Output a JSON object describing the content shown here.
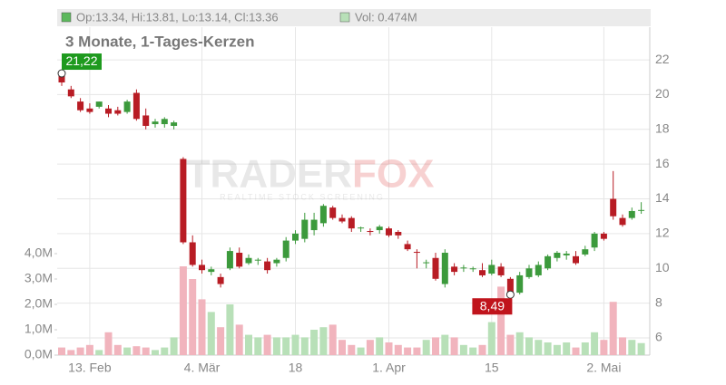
{
  "chart_data": {
    "type": "candlestick",
    "header": {
      "ohlc": "Op:13.34, Hi:13.81, Lo:13.14, Cl:13.36",
      "volume": "Vol: 0.474M"
    },
    "subtitle": "3 Monate, 1-Tages-Kerzen",
    "watermark": {
      "brand_left": "TRADER",
      "brand_right": "FOX",
      "tagline": "REALTIME STOCK SCREENING"
    },
    "categories": [
      null,
      null,
      null,
      "13. Feb",
      null,
      null,
      null,
      null,
      null,
      null,
      null,
      null,
      null,
      null,
      null,
      "4. Mär",
      null,
      null,
      null,
      null,
      null,
      null,
      null,
      null,
      null,
      "18",
      null,
      null,
      null,
      null,
      null,
      null,
      null,
      null,
      null,
      "1. Apr",
      null,
      null,
      null,
      null,
      null,
      null,
      null,
      null,
      null,
      null,
      "15",
      null,
      null,
      null,
      null,
      null,
      null,
      null,
      null,
      null,
      null,
      null,
      "2. Mai",
      null,
      null,
      null,
      null
    ],
    "open": [
      21.1,
      20.3,
      19.6,
      19.2,
      19.3,
      19.2,
      19.1,
      19.0,
      20.1,
      18.8,
      18.3,
      18.3,
      18.2,
      16.3,
      11.5,
      10.2,
      9.8,
      9.5,
      10.0,
      10.9,
      10.3,
      10.45,
      10.4,
      10.3,
      10.6,
      11.6,
      11.7,
      12.2,
      12.6,
      13.5,
      12.9,
      12.9,
      12.3,
      12.15,
      12.2,
      12.3,
      12.1,
      11.4,
      10.95,
      10.3,
      10.6,
      9.1,
      10.1,
      10.0,
      9.95,
      9.9,
      9.7,
      10.1,
      9.4,
      8.6,
      9.5,
      9.6,
      10.0,
      10.6,
      10.75,
      10.7,
      10.8,
      11.2,
      12.0,
      14.0,
      12.9,
      12.9,
      13.34
    ],
    "high": [
      21.22,
      20.5,
      19.8,
      19.5,
      19.6,
      19.4,
      19.3,
      19.7,
      20.3,
      19.2,
      18.6,
      18.7,
      18.5,
      16.4,
      11.9,
      10.5,
      10.1,
      9.7,
      11.2,
      11.2,
      10.8,
      10.6,
      10.6,
      10.6,
      11.8,
      12.2,
      13.2,
      13.2,
      13.7,
      13.6,
      13.1,
      13.0,
      12.4,
      12.3,
      12.5,
      12.4,
      12.2,
      11.6,
      11.1,
      10.5,
      10.9,
      11.1,
      10.3,
      10.2,
      10.1,
      10.3,
      10.5,
      10.3,
      9.5,
      9.8,
      10.2,
      10.4,
      10.8,
      11.0,
      11.0,
      11.0,
      11.3,
      12.1,
      12.1,
      15.6,
      13.1,
      13.5,
      13.81
    ],
    "low": [
      20.5,
      19.8,
      19.0,
      18.9,
      19.2,
      18.7,
      18.8,
      18.9,
      18.5,
      18.0,
      18.1,
      18.1,
      18.0,
      11.4,
      10.1,
      9.7,
      9.6,
      8.9,
      9.9,
      10.0,
      10.2,
      10.2,
      9.7,
      10.1,
      10.4,
      11.4,
      11.5,
      11.9,
      12.4,
      12.8,
      12.6,
      12.1,
      12.1,
      11.9,
      12.0,
      11.8,
      11.7,
      11.0,
      10.0,
      10.0,
      9.3,
      8.9,
      9.6,
      9.8,
      9.8,
      9.5,
      9.6,
      9.5,
      8.49,
      8.5,
      9.4,
      9.5,
      9.9,
      10.4,
      10.5,
      10.2,
      10.7,
      11.0,
      11.6,
      12.8,
      12.4,
      12.8,
      13.14
    ],
    "close": [
      20.7,
      19.9,
      19.1,
      19.0,
      19.6,
      18.9,
      18.9,
      19.6,
      18.6,
      18.2,
      18.45,
      18.6,
      18.4,
      11.5,
      10.2,
      9.9,
      9.95,
      9.1,
      11.0,
      10.1,
      10.6,
      10.5,
      9.9,
      10.5,
      11.6,
      12.0,
      12.8,
      12.8,
      13.6,
      12.9,
      12.7,
      12.3,
      12.35,
      12.1,
      12.4,
      11.9,
      11.9,
      11.1,
      10.9,
      10.35,
      9.4,
      10.9,
      9.8,
      10.05,
      10.0,
      9.6,
      10.2,
      9.6,
      8.6,
      9.6,
      10.0,
      10.2,
      10.7,
      10.9,
      10.85,
      10.3,
      11.1,
      12.0,
      11.7,
      13.0,
      12.5,
      13.3,
      13.36
    ],
    "volume": [
      0.3,
      0.2,
      0.3,
      0.4,
      0.2,
      0.9,
      0.4,
      0.3,
      0.35,
      0.3,
      0.2,
      0.3,
      0.7,
      3.5,
      3.0,
      2.2,
      1.7,
      1.1,
      2.0,
      1.2,
      0.8,
      0.7,
      0.8,
      0.7,
      0.7,
      0.8,
      0.7,
      1.0,
      1.1,
      1.2,
      0.6,
      0.4,
      0.3,
      0.6,
      0.7,
      0.5,
      0.4,
      0.3,
      0.3,
      0.6,
      0.7,
      0.8,
      0.7,
      0.4,
      0.3,
      0.4,
      1.3,
      2.7,
      0.8,
      0.9,
      0.7,
      0.6,
      0.5,
      0.4,
      0.5,
      0.3,
      0.5,
      0.9,
      0.6,
      2.1,
      0.7,
      0.6,
      0.474
    ],
    "up_color": "#3c9a3c",
    "down_color": "#b81c24",
    "volume_up_color": "#b8e0b8",
    "volume_down_color": "#f1b4bd",
    "ylim": [
      5.01,
      23.88
    ],
    "yticks": [
      6,
      8,
      10,
      12,
      14,
      16,
      18,
      20,
      22
    ],
    "y2lim": [
      0,
      12.93
    ],
    "y2ticks": [
      {
        "value": 0,
        "label": "0,0M"
      },
      {
        "value": 1,
        "label": "1,0M"
      },
      {
        "value": 2,
        "label": "2,0M"
      },
      {
        "value": 3,
        "label": "3,0M"
      },
      {
        "value": 4,
        "label": "4,0M"
      }
    ],
    "annotations": [
      {
        "value": 21.22,
        "label": "21,22",
        "color": "#1e9a1e"
      },
      {
        "value": 8.49,
        "label": "8,49",
        "color": "#c0141c"
      }
    ],
    "grid": true
  }
}
